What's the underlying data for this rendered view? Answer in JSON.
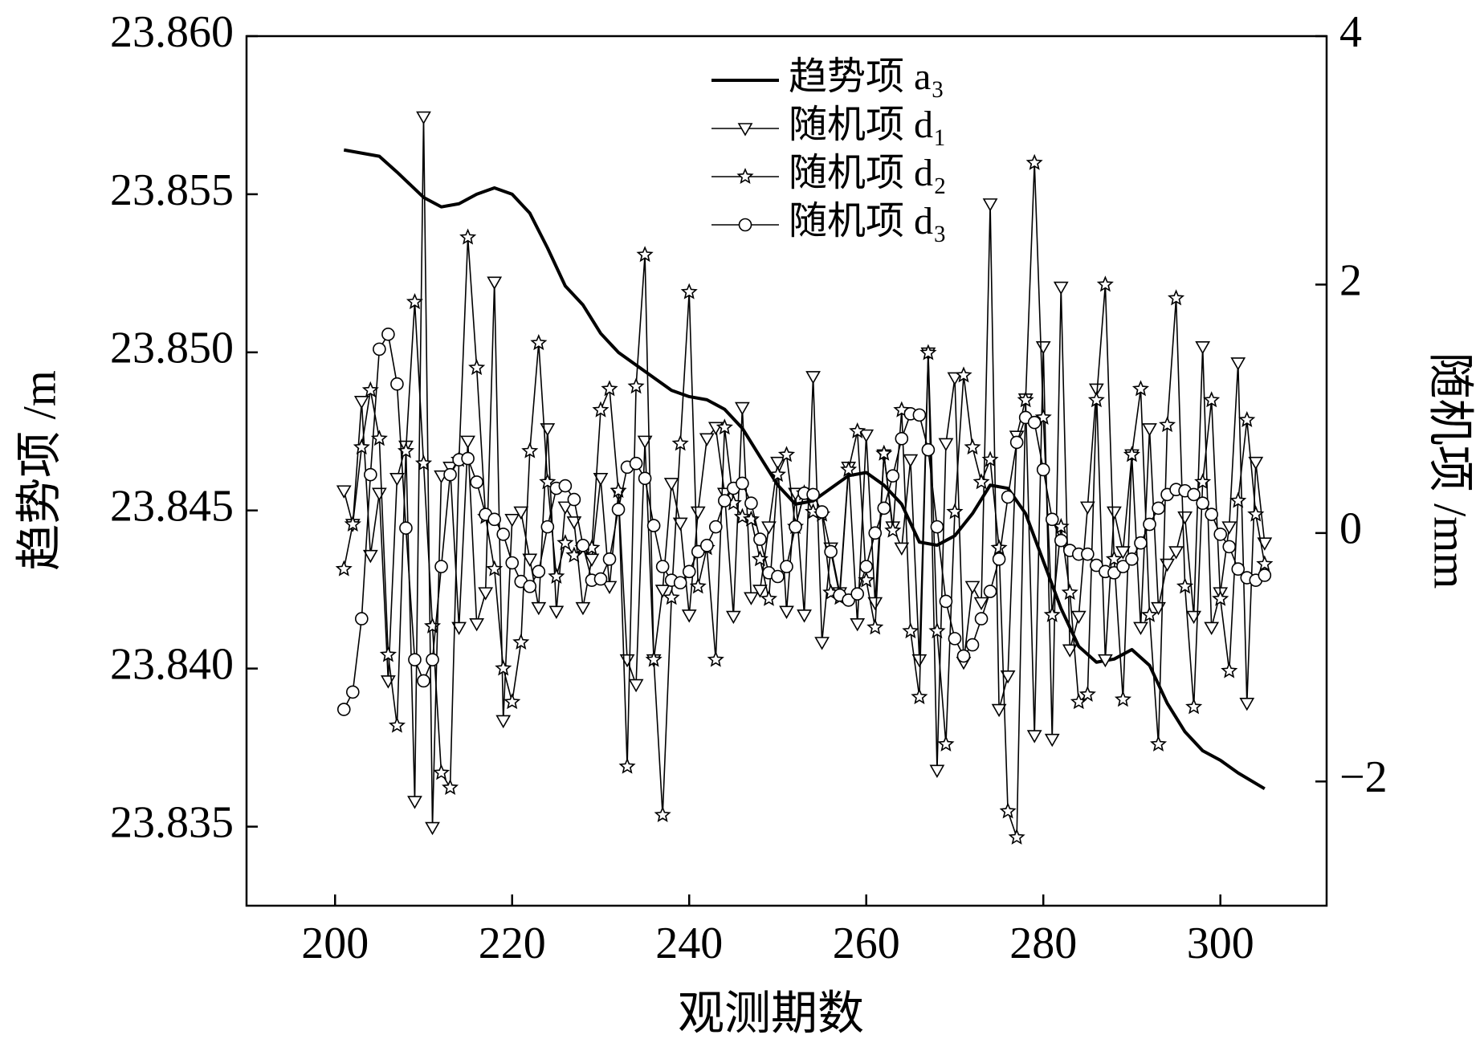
{
  "chart_data": {
    "type": "line",
    "xlabel": "观测期数",
    "ylabel": "趋势项 /m",
    "y2label": "随机项 /mm",
    "xlim": [
      190,
      312
    ],
    "xticks": [
      200,
      220,
      240,
      260,
      280,
      300
    ],
    "ylim": [
      23.8325,
      23.86
    ],
    "yticks": [
      {
        "value": 23.835,
        "label": "23.835"
      },
      {
        "value": 23.84,
        "label": "23.840"
      },
      23.845,
      {
        "value": 23.85,
        "label": "23.850"
      },
      23.855,
      {
        "value": 23.86,
        "label": "23.860"
      }
    ],
    "y2lim": [
      -3,
      4
    ],
    "y2ticks": [
      {
        "value": -2,
        "label": "−2"
      },
      0,
      2,
      4
    ],
    "legend": "upper center",
    "x": [
      201,
      202,
      203,
      204,
      205,
      206,
      207,
      208,
      209,
      210,
      211,
      212,
      213,
      214,
      215,
      216,
      217,
      218,
      219,
      220,
      221,
      222,
      223,
      224,
      225,
      226,
      227,
      228,
      229,
      230,
      231,
      232,
      233,
      234,
      235,
      236,
      237,
      238,
      239,
      240,
      241,
      242,
      243,
      244,
      245,
      246,
      247,
      248,
      249,
      250,
      251,
      252,
      253,
      254,
      255,
      256,
      257,
      258,
      259,
      260,
      261,
      262,
      263,
      264,
      265,
      266,
      267,
      268,
      269,
      270,
      271,
      272,
      273,
      274,
      275,
      276,
      277,
      278,
      279,
      280,
      281,
      282,
      283,
      284,
      285,
      286,
      287,
      288,
      289,
      290,
      291,
      292,
      293,
      294,
      295,
      296,
      297,
      298,
      299,
      300,
      301,
      302,
      303,
      304,
      305
    ],
    "series": [
      {
        "name": "趋势项 a₃",
        "color": "#000000",
        "marker": "none",
        "line_width": 4,
        "x": [
          201,
          205,
          207,
          210,
          212,
          214,
          216,
          218,
          220,
          222,
          224,
          226,
          228,
          230,
          232,
          235,
          238,
          240,
          242,
          244,
          246,
          248,
          250,
          252,
          254,
          256,
          258,
          260,
          262,
          264,
          266,
          268,
          270,
          272,
          274,
          276,
          278,
          280,
          282,
          284,
          286,
          288,
          290,
          292,
          294,
          296,
          298,
          300,
          302,
          305
        ],
        "values": [
          23.8564,
          23.8562,
          23.8557,
          23.8549,
          23.8546,
          23.8547,
          23.855,
          23.8552,
          23.855,
          23.8544,
          23.8533,
          23.8521,
          23.8515,
          23.8506,
          23.85,
          23.8494,
          23.8488,
          23.8486,
          23.8485,
          23.8482,
          23.8476,
          23.8467,
          23.8458,
          23.8452,
          23.8453,
          23.8457,
          23.8461,
          23.8462,
          23.8458,
          23.8452,
          23.844,
          23.8439,
          23.8442,
          23.8449,
          23.8458,
          23.8457,
          23.8449,
          23.8434,
          23.8419,
          23.8407,
          23.8402,
          23.8403,
          23.8406,
          23.8401,
          23.8389,
          23.838,
          23.8374,
          23.8371,
          23.8367,
          23.8362
        ]
      },
      {
        "name": "随机项 d₁",
        "color": "#000000",
        "marker": "triangle-down",
        "line_width": 1.6,
        "axis": "y2",
        "values": [
          0.34,
          0.07,
          1.06,
          -0.18,
          0.32,
          -1.19,
          0.44,
          0.7,
          -2.16,
          3.35,
          -2.37,
          0.46,
          0.53,
          -0.76,
          0.74,
          -0.73,
          -0.48,
          2.02,
          -1.51,
          0.11,
          0.17,
          -0.21,
          -0.6,
          0.84,
          -0.63,
          0.21,
          0.09,
          -0.6,
          -0.21,
          0.44,
          -0.43,
          0.32,
          -1.02,
          -1.22,
          0.74,
          -1.02,
          -0.46,
          0.4,
          0.08,
          -0.66,
          0.17,
          0.76,
          0.85,
          0.32,
          -0.67,
          1.01,
          -0.52,
          -0.46,
          0.05,
          0.57,
          -0.63,
          0.32,
          -0.66,
          1.26,
          -0.88,
          -0.12,
          -0.48,
          0.53,
          -0.73,
          0.79,
          -0.56,
          0.63,
          0.05,
          -0.12,
          0.59,
          -1.02,
          1.45,
          -1.91,
          0.72,
          1.25,
          -1.04,
          -0.43,
          -0.56,
          2.65,
          -1.42,
          -1.15,
          0.78,
          1.08,
          -1.63,
          1.5,
          -1.66,
          1.98,
          -0.94,
          -0.67,
          0.21,
          1.16,
          -1.02,
          0.17,
          -0.15,
          0.63,
          -0.76,
          0.84,
          -0.6,
          -0.25,
          -0.15,
          0.13,
          -0.67,
          1.5,
          -0.76,
          -0.48,
          0.05,
          1.37,
          -1.37,
          0.57,
          -0.08
        ]
      },
      {
        "name": "随机项 d₂",
        "color": "#000000",
        "marker": "star",
        "line_width": 1.6,
        "axis": "y2",
        "values": [
          -0.29,
          0.07,
          0.69,
          1.15,
          0.76,
          -0.98,
          -1.55,
          0.66,
          1.86,
          0.56,
          -0.75,
          -1.93,
          -2.05,
          0.59,
          2.38,
          1.33,
          0.13,
          -0.29,
          -1.09,
          -1.36,
          -0.88,
          0.66,
          1.53,
          0.41,
          -0.35,
          -0.08,
          -0.18,
          -0.12,
          -0.12,
          0.99,
          1.16,
          0.34,
          -1.88,
          1.18,
          2.24,
          -1.02,
          -2.27,
          -0.52,
          0.72,
          1.94,
          -0.43,
          -0.12,
          -1.02,
          0.85,
          0.24,
          0.13,
          0.11,
          -0.21,
          -0.53,
          0.47,
          0.63,
          0.05,
          0.32,
          0.17,
          0.15,
          -0.48,
          -0.52,
          0.51,
          0.82,
          -0.38,
          -0.76,
          0.64,
          0.02,
          0.99,
          -0.79,
          -1.32,
          1.45,
          -0.79,
          -1.7,
          0.17,
          1.27,
          0.69,
          0.41,
          0.59,
          -0.12,
          -2.24,
          -2.45,
          1.07,
          2.98,
          0.93,
          -0.66,
          0.05,
          -0.48,
          -1.36,
          -1.3,
          1.07,
          2.0,
          -0.21,
          -1.34,
          0.63,
          1.16,
          -0.66,
          -1.7,
          0.87,
          1.89,
          -0.43,
          -1.4,
          0.41,
          1.07,
          -0.53,
          -1.11,
          0.26,
          0.91,
          0.15,
          -0.25
        ]
      },
      {
        "name": "随机项 d₃",
        "color": "#000000",
        "marker": "circle",
        "line_width": 1.6,
        "axis": "y2",
        "values": [
          -1.42,
          -1.28,
          -0.69,
          0.47,
          1.48,
          1.6,
          1.2,
          0.04,
          -1.02,
          -1.19,
          -1.02,
          -0.27,
          0.47,
          0.59,
          0.6,
          0.41,
          0.15,
          0.11,
          -0.01,
          -0.24,
          -0.39,
          -0.43,
          -0.31,
          0.05,
          0.36,
          0.38,
          0.27,
          -0.1,
          -0.38,
          -0.37,
          -0.21,
          0.19,
          0.53,
          0.56,
          0.44,
          0.06,
          -0.27,
          -0.38,
          -0.4,
          -0.31,
          -0.15,
          -0.1,
          0.05,
          0.26,
          0.36,
          0.4,
          0.24,
          -0.05,
          -0.32,
          -0.35,
          -0.27,
          0.05,
          0.32,
          0.31,
          0.17,
          -0.15,
          -0.5,
          -0.54,
          -0.49,
          -0.27,
          0,
          0.2,
          0.46,
          0.76,
          0.96,
          0.95,
          0.67,
          0.05,
          -0.55,
          -0.85,
          -0.99,
          -0.9,
          -0.69,
          -0.47,
          -0.21,
          0.29,
          0.73,
          0.93,
          0.89,
          0.51,
          0.11,
          -0.06,
          -0.14,
          -0.17,
          -0.17,
          -0.26,
          -0.31,
          -0.32,
          -0.27,
          -0.21,
          -0.08,
          0.07,
          0.2,
          0.31,
          0.35,
          0.34,
          0.31,
          0.24,
          0.15,
          -0.01,
          -0.11,
          -0.29,
          -0.36,
          -0.38,
          -0.34
        ]
      }
    ]
  }
}
